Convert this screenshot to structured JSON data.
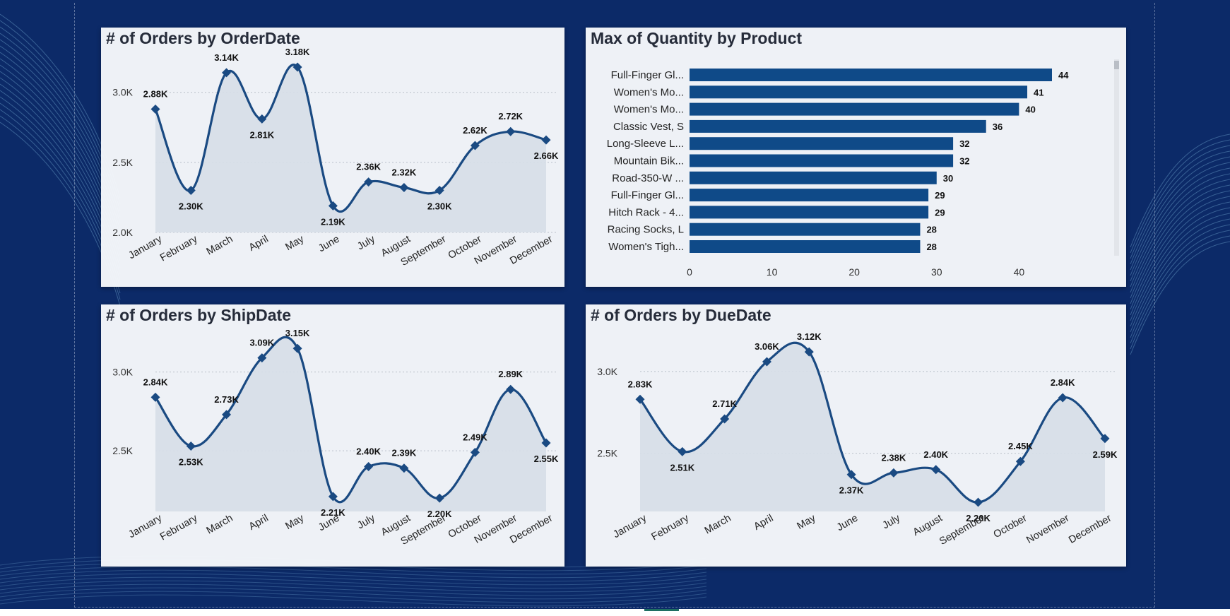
{
  "theme": {
    "background": "#0c2a68",
    "panel_background": "#f6f8fb",
    "line_color": "#1a4a82",
    "area_fill": "#d6dee8",
    "bar_color": "#0f4a88"
  },
  "chart_data": [
    {
      "id": "orders-by-orderdate",
      "type": "area",
      "title": "# of Orders by OrderDate",
      "categories": [
        "January",
        "February",
        "March",
        "April",
        "May",
        "June",
        "July",
        "August",
        "September",
        "October",
        "November",
        "December"
      ],
      "values": [
        2880,
        2300,
        3140,
        2810,
        3180,
        2190,
        2360,
        2320,
        2300,
        2620,
        2720,
        2660
      ],
      "value_labels": [
        "2.88K",
        "2.30K",
        "3.14K",
        "2.81K",
        "3.18K",
        "2.19K",
        "2.36K",
        "2.32K",
        "2.30K",
        "2.62K",
        "2.72K",
        "2.66K"
      ],
      "y_ticks": [
        2000,
        2500,
        3000
      ],
      "y_tick_labels": [
        "2.0K",
        "2.5K",
        "3.0K"
      ],
      "ylim": [
        2000,
        3180
      ],
      "grid": true,
      "marker": "diamond"
    },
    {
      "id": "max-quantity-by-product",
      "type": "bar",
      "orientation": "horizontal",
      "title": "Max of Quantity by Product",
      "categories": [
        "Full-Finger Gl...",
        "Women's Mo...",
        "Women's Mo...",
        "Classic Vest, S",
        "Long-Sleeve L...",
        "Mountain Bik...",
        "Road-350-W ...",
        "Full-Finger Gl...",
        "Hitch Rack - 4...",
        "Racing Socks, L",
        "Women's Tigh..."
      ],
      "values": [
        44,
        41,
        40,
        36,
        32,
        32,
        30,
        29,
        29,
        28,
        28
      ],
      "x_ticks": [
        0,
        10,
        20,
        30,
        40
      ],
      "xlim": [
        0,
        44
      ],
      "grid": false
    },
    {
      "id": "orders-by-shipdate",
      "type": "area",
      "title": "# of Orders by ShipDate",
      "categories": [
        "January",
        "February",
        "March",
        "April",
        "May",
        "June",
        "July",
        "August",
        "September",
        "October",
        "November",
        "December"
      ],
      "values": [
        2840,
        2530,
        2730,
        3090,
        3150,
        2210,
        2400,
        2390,
        2200,
        2490,
        2890,
        2550
      ],
      "value_labels": [
        "2.84K",
        "2.53K",
        "2.73K",
        "3.09K",
        "3.15K",
        "2.21K",
        "2.40K",
        "2.39K",
        "2.20K",
        "2.49K",
        "2.89K",
        "2.55K"
      ],
      "y_ticks": [
        2500,
        3000
      ],
      "y_tick_labels": [
        "2.5K",
        "3.0K"
      ],
      "ylim": [
        2160,
        3160
      ],
      "grid": true,
      "marker": "diamond"
    },
    {
      "id": "orders-by-duedate",
      "type": "area",
      "title": "# of Orders by DueDate",
      "categories": [
        "January",
        "February",
        "March",
        "April",
        "May",
        "June",
        "July",
        "August",
        "September",
        "October",
        "November",
        "December"
      ],
      "values": [
        2830,
        2510,
        2710,
        3060,
        3120,
        2370,
        2380,
        2400,
        2200,
        2450,
        2840,
        2590
      ],
      "value_labels": [
        "2.83K",
        "2.51K",
        "2.71K",
        "3.06K",
        "3.12K",
        "2.37K",
        "2.38K",
        "2.40K",
        "2.20K",
        "2.45K",
        "2.84K",
        "2.59K"
      ],
      "y_ticks": [
        2500,
        3000
      ],
      "y_tick_labels": [
        "2.5K",
        "3.0K"
      ],
      "ylim": [
        2170,
        3125
      ],
      "grid": true,
      "marker": "diamond"
    }
  ]
}
